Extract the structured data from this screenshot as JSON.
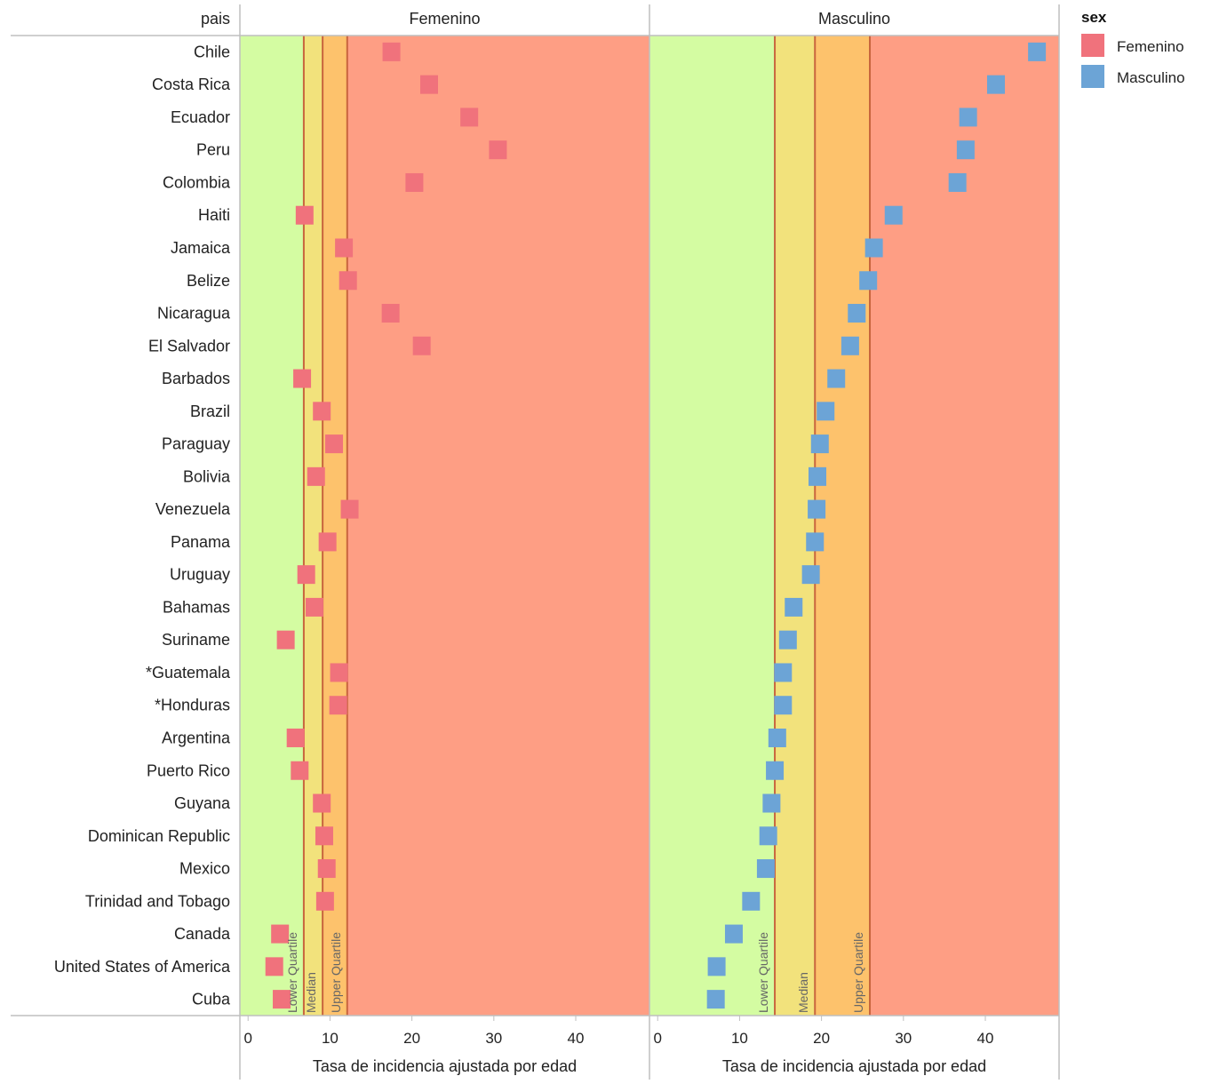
{
  "colors": {
    "femenino": "#F0727C",
    "masculino": "#6CA4D6",
    "zone_low": "#D4FCA2",
    "zone_median": "#F2E27C",
    "zone_upper": "#FDC26C",
    "zone_high": "#FE9E84",
    "quartile_line": "#C8653E",
    "grid_line": "#BFBFBF"
  },
  "chart_data": {
    "type": "scatter",
    "row_header": "pais",
    "xlabel": "Tasa de incidencia ajustada por edad",
    "xlim": [
      -1,
      49
    ],
    "xticks": [
      0,
      10,
      20,
      30,
      40
    ],
    "categories": [
      "Chile",
      "Costa Rica",
      "Ecuador",
      "Peru",
      "Colombia",
      "Haiti",
      "Jamaica",
      "Belize",
      "Nicaragua",
      "El Salvador",
      "Barbados",
      "Brazil",
      "Paraguay",
      "Bolivia",
      "Venezuela",
      "Panama",
      "Uruguay",
      "Bahamas",
      "Suriname",
      "*Guatemala",
      "*Honduras",
      "Argentina",
      "Puerto Rico",
      "Guyana",
      "Dominican Republic",
      "Mexico",
      "Trinidad and Tobago",
      "Canada",
      "United States of America",
      "Cuba"
    ],
    "quartile_labels": [
      "Lower Quartile",
      "Median",
      "Upper Quartile"
    ],
    "facets": [
      {
        "title": "Femenino",
        "color_key": "femenino",
        "lower_quartile": 6.8,
        "median": 9.1,
        "upper_quartile": 12.1,
        "values": [
          17.5,
          22.1,
          27.0,
          30.5,
          20.3,
          6.9,
          11.7,
          12.2,
          17.4,
          21.2,
          6.6,
          9.0,
          10.5,
          8.3,
          12.4,
          9.7,
          7.1,
          8.1,
          4.6,
          11.1,
          11.0,
          5.8,
          6.3,
          9.0,
          9.3,
          9.6,
          9.4,
          3.9,
          3.2,
          4.1
        ]
      },
      {
        "title": "Masculino",
        "color_key": "masculino",
        "lower_quartile": 14.3,
        "median": 19.2,
        "upper_quartile": 25.9,
        "values": [
          46.3,
          41.3,
          37.9,
          37.6,
          36.6,
          28.8,
          26.4,
          25.7,
          24.3,
          23.5,
          21.8,
          20.5,
          19.8,
          19.5,
          19.4,
          19.2,
          18.7,
          16.6,
          15.9,
          15.3,
          15.3,
          14.6,
          14.3,
          13.9,
          13.5,
          13.2,
          11.4,
          9.3,
          7.2,
          7.1
        ]
      }
    ],
    "legend": {
      "title": "sex",
      "entries": [
        {
          "label": "Femenino",
          "color_key": "femenino"
        },
        {
          "label": "Masculino",
          "color_key": "masculino"
        }
      ]
    }
  }
}
